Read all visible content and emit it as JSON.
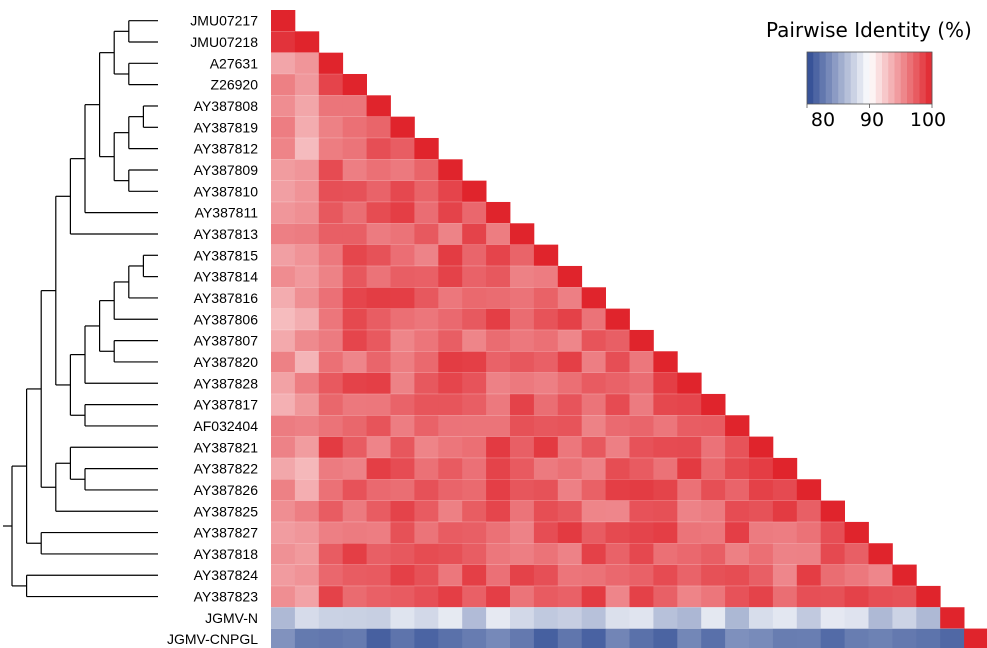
{
  "chart_data": {
    "type": "heatmap",
    "legend": {
      "title": "Pairwise Identity (%)",
      "ticks": [
        80,
        90,
        100
      ],
      "range": [
        80,
        100
      ],
      "colors": {
        "low": "#2d4a93",
        "mid": "#ffffff",
        "high": "#e0242c"
      }
    },
    "taxa": [
      "JMU07217",
      "JMU07218",
      "A27631",
      "Z26920",
      "AY387808",
      "AY387819",
      "AY387812",
      "AY387809",
      "AY387810",
      "AY387811",
      "AY387813",
      "AY387815",
      "AY387814",
      "AY387816",
      "AY387806",
      "AY387807",
      "AY387820",
      "AY387828",
      "AY387817",
      "AF032404",
      "AY387821",
      "AY387822",
      "AY387826",
      "AY387825",
      "AY387827",
      "AY387818",
      "AY387824",
      "AY387823",
      "JGMV-N",
      "JGMV-CNPGL"
    ],
    "tree_newick": "(((((((((JMU07217,JMU07218),(A27631,Z26920)),(((AY387808,AY387819),AY387812),(AY387809,AY387810))),AY387811),AY387813),((((((AY387815,AY387814),AY387816),AY387806),(AY387807,AY387820)),AY387828),(AY387817,AF032404))),((AY387821,(AY387822,AY387826)),AY387825)),(AY387827,AY387818)),(AY387824,AY387823)),JGMV-N,JGMV-CNPGL)"
  }
}
